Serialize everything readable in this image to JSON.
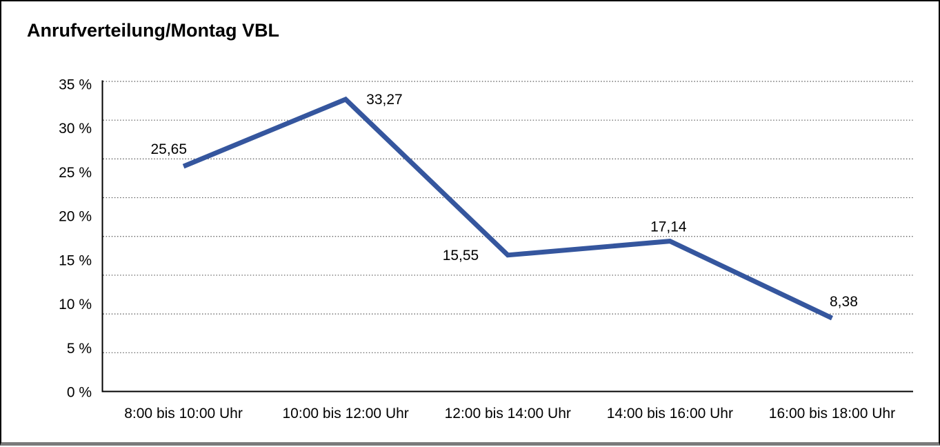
{
  "chart_data": {
    "type": "line",
    "title": "Anrufverteilung/Montag VBL",
    "categories": [
      "8:00 bis 10:00 Uhr",
      "10:00 bis 12:00 Uhr",
      "12:00 bis 14:00 Uhr",
      "14:00 bis 16:00 Uhr",
      "16:00 bis 18:00 Uhr"
    ],
    "series": [
      {
        "name": "Anrufverteilung Montag VBL",
        "values": [
          25.65,
          33.27,
          15.55,
          17.14,
          8.38
        ],
        "point_labels": [
          "25,65",
          "33,27",
          "15,55",
          "17,14",
          "8,38"
        ]
      }
    ],
    "ylabel": "",
    "xlabel": "",
    "ylim": [
      0,
      35
    ],
    "ytick_step": 5,
    "ytick_labels": [
      "35 %",
      "30 %",
      "25 %",
      "20 %",
      "15 %",
      "10 %",
      "5 %",
      "0 %"
    ],
    "grid": "horizontal-dotted",
    "legend": "none",
    "line_color": "#35569E",
    "axis_color": "#000000",
    "grid_color": "#555555",
    "text_color": "#000000"
  }
}
